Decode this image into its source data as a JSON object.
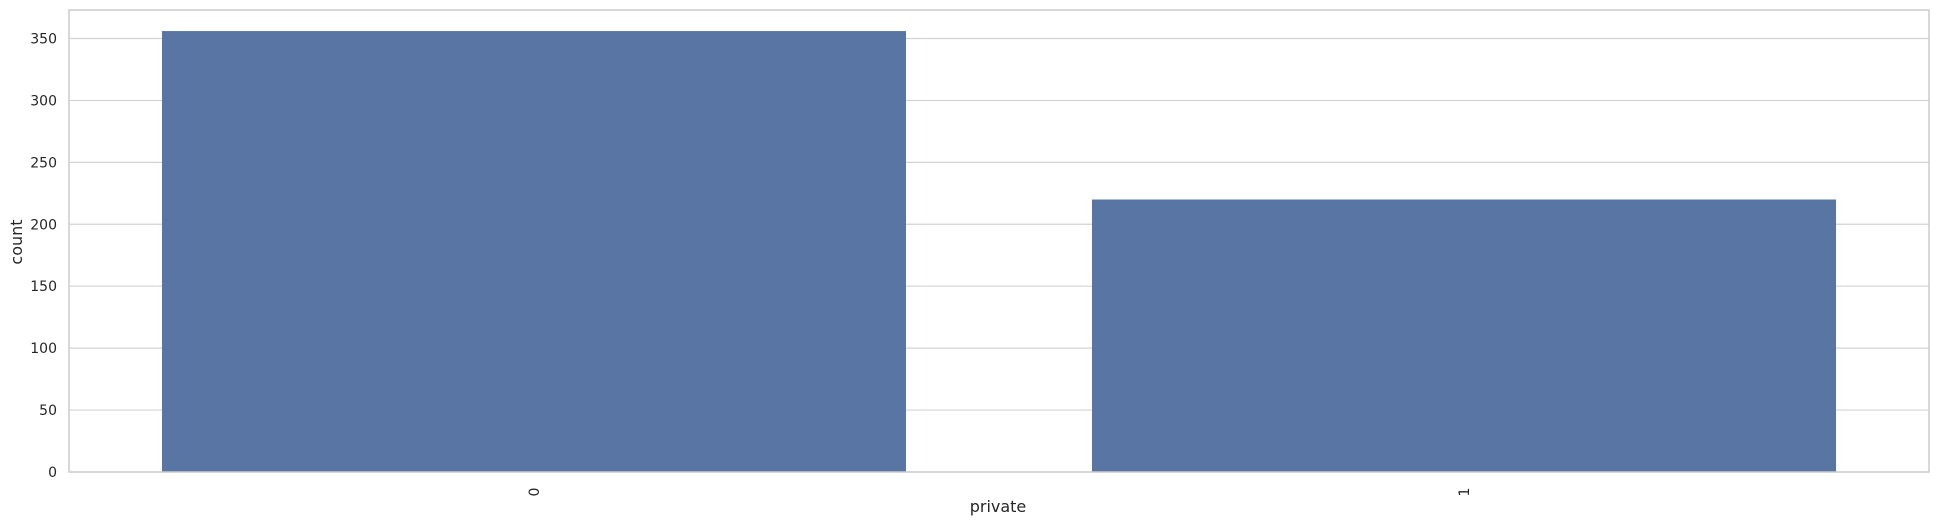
{
  "chart_data": {
    "type": "bar",
    "title": "",
    "xlabel": "private",
    "ylabel": "count",
    "categories": [
      "0",
      "1"
    ],
    "values": [
      356,
      220
    ],
    "ylim": [
      0,
      373
    ],
    "yticks": [
      0,
      50,
      100,
      150,
      200,
      250,
      300,
      350
    ],
    "grid": "horizontal",
    "legend": "none",
    "colors": {
      "bar": "#5975a4",
      "grid": "#d3d3d3",
      "frame": "#cccccc",
      "text": "#262626",
      "background": "#ffffff"
    }
  }
}
